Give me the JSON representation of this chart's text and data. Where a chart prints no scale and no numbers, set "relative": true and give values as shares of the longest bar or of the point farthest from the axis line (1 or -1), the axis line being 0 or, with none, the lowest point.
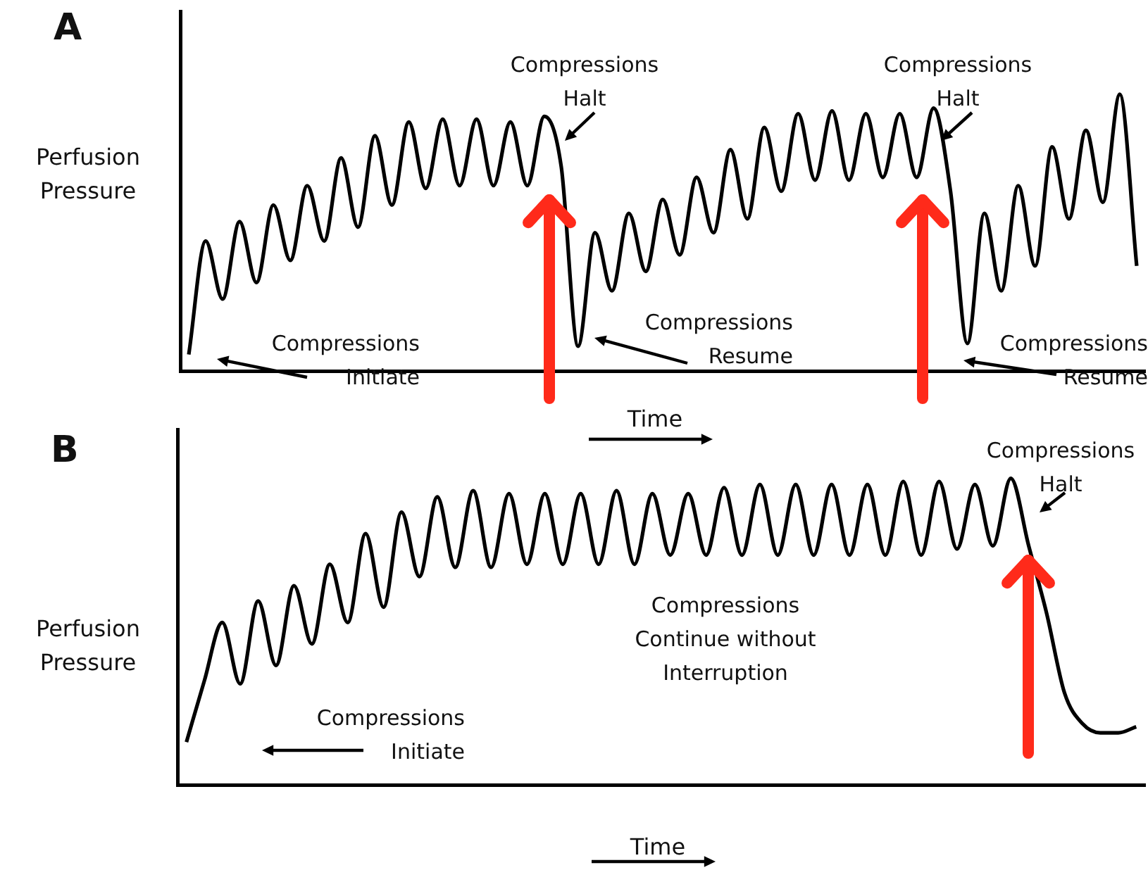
{
  "chart_data": [
    {
      "type": "line",
      "title": "A",
      "ylabel": "Perfusion Pressure",
      "xlabel": "Time",
      "relative": true,
      "marker": "none",
      "categories": [
        null,
        null,
        null,
        null,
        null,
        null,
        null,
        null,
        null,
        null,
        null,
        null,
        null,
        null,
        null,
        null,
        null,
        null,
        null,
        null,
        null,
        null,
        null,
        null,
        null,
        null,
        null,
        null,
        null,
        null,
        null,
        null,
        null,
        null,
        null,
        null,
        null,
        null,
        null,
        null,
        null,
        null,
        null,
        null,
        null,
        null,
        null,
        null,
        null,
        null,
        null,
        null,
        null,
        null,
        null,
        null,
        null
      ],
      "series": [
        {
          "color": "#000000",
          "values": [
            0.06,
            0.47,
            0.26,
            0.54,
            0.32,
            0.6,
            0.4,
            0.67,
            0.47,
            0.77,
            0.52,
            0.85,
            0.6,
            0.9,
            0.66,
            0.91,
            0.67,
            0.91,
            0.67,
            0.9,
            0.67,
            0.92,
            0.74,
            0.09,
            0.5,
            0.29,
            0.57,
            0.36,
            0.62,
            0.42,
            0.7,
            0.5,
            0.8,
            0.55,
            0.88,
            0.65,
            0.93,
            0.69,
            0.94,
            0.69,
            0.93,
            0.7,
            0.93,
            0.7,
            0.95,
            0.65,
            0.1,
            0.57,
            0.29,
            0.67,
            0.38,
            0.81,
            0.55,
            0.87,
            0.61,
            1.0,
            0.38
          ]
        }
      ],
      "annotations": [
        "Compressions Initiate",
        "Compressions Halt",
        "Compressions Resume",
        "Compressions Halt",
        "Compressions Resume"
      ]
    },
    {
      "type": "line",
      "title": "B",
      "ylabel": "Perfusion Pressure",
      "xlabel": "Time",
      "relative": true,
      "marker": "none",
      "categories": [
        null,
        null,
        null,
        null,
        null,
        null,
        null,
        null,
        null,
        null,
        null,
        null,
        null,
        null,
        null,
        null,
        null,
        null,
        null,
        null,
        null,
        null,
        null,
        null,
        null,
        null,
        null,
        null,
        null,
        null,
        null,
        null,
        null,
        null,
        null,
        null,
        null,
        null,
        null,
        null,
        null,
        null,
        null,
        null,
        null,
        null,
        null,
        null,
        null,
        null,
        null,
        null,
        null,
        null
      ],
      "series": [
        {
          "color": "#000000",
          "values": [
            0.14,
            0.34,
            0.53,
            0.33,
            0.6,
            0.39,
            0.65,
            0.46,
            0.72,
            0.53,
            0.82,
            0.58,
            0.89,
            0.68,
            0.94,
            0.71,
            0.96,
            0.71,
            0.95,
            0.72,
            0.95,
            0.72,
            0.95,
            0.72,
            0.96,
            0.72,
            0.95,
            0.75,
            0.95,
            0.75,
            0.97,
            0.75,
            0.98,
            0.75,
            0.98,
            0.75,
            0.98,
            0.75,
            0.98,
            0.75,
            0.99,
            0.75,
            0.99,
            0.77,
            0.98,
            0.78,
            1.0,
            0.78,
            0.56,
            0.3,
            0.2,
            0.17,
            0.17,
            0.19
          ]
        }
      ],
      "annotations": [
        "Compressions Initiate",
        "Compressions Continue without Interruption",
        "Compressions Halt"
      ]
    }
  ]
}
